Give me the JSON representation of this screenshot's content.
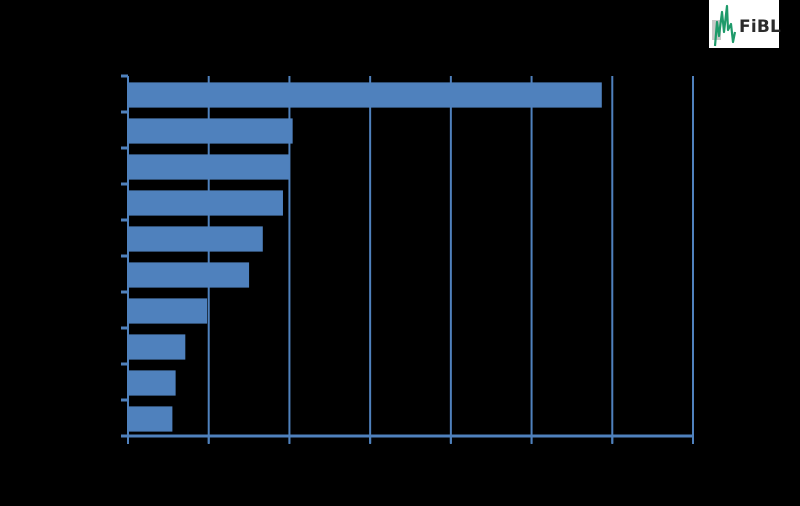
{
  "chart_data": {
    "type": "bar",
    "orientation": "horizontal",
    "title": "",
    "xlabel": "",
    "ylabel": "",
    "categories": [
      "",
      "",
      "",
      "",
      "",
      "",
      "",
      "",
      "",
      ""
    ],
    "values": [
      5.87,
      2.04,
      2.0,
      1.92,
      1.67,
      1.5,
      0.98,
      0.71,
      0.59,
      0.55
    ],
    "value_units": "gridline intervals (tick labels not legible; rendered black on black)",
    "xlim": [
      0,
      7
    ],
    "x_ticks": [
      0,
      1,
      2,
      3,
      4,
      5,
      6,
      7
    ],
    "x_tick_labels": [
      "",
      "",
      "",
      "",
      "",
      "",
      "",
      ""
    ],
    "grid": {
      "vertical": true,
      "horizontal": false
    },
    "legend": null,
    "data_labels": [
      "",
      "",
      "",
      "",
      "",
      "",
      "",
      "",
      "",
      ""
    ],
    "bar_color": "#4f81bd",
    "axis_color": "#4f81bd",
    "background": "#000000"
  },
  "logo": {
    "text": "FiBL",
    "accent": "#1e9a6a"
  }
}
